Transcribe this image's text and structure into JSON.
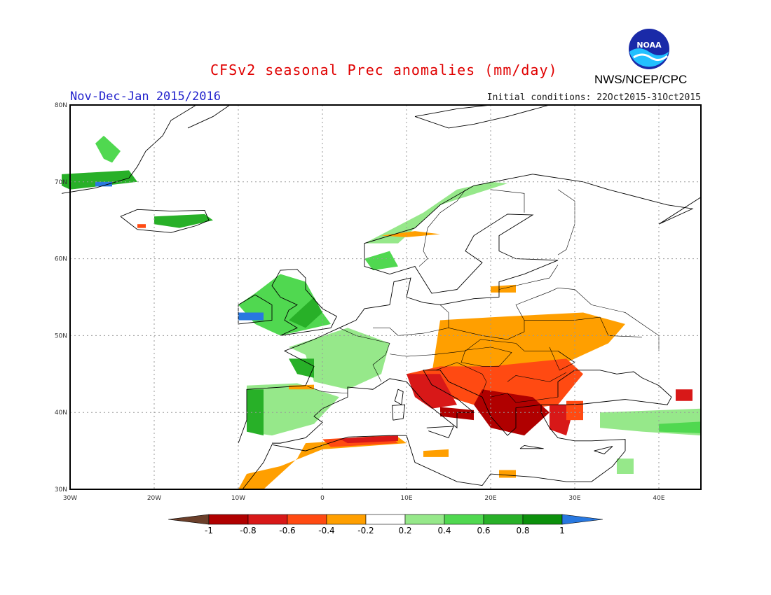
{
  "header": {
    "title": "CFSv2 seasonal Prec anomalies (mm/day)",
    "period": "Nov-Dec-Jan 2015/2016",
    "initial_conditions": "Initial conditions: 22Oct2015-31Oct2015",
    "agency": "NWS/NCEP/CPC",
    "logo_text": "NOAA"
  },
  "map": {
    "lon_labels": [
      "30W",
      "20W",
      "10W",
      "0",
      "10E",
      "20E",
      "30E",
      "40E"
    ],
    "lat_labels": [
      "80N",
      "70N",
      "60N",
      "50N",
      "40N",
      "30N"
    ]
  },
  "legend": {
    "tick_labels": [
      "-1",
      "-0.8",
      "-0.6",
      "-0.4",
      "-0.2",
      "0.2",
      "0.4",
      "0.6",
      "0.8",
      "1"
    ],
    "colors": [
      "#6b3f2a",
      "#b00000",
      "#d81818",
      "#ff4a12",
      "#ff9f00",
      "#ffffff",
      "#96e88a",
      "#50d850",
      "#28b028",
      "#0c900c",
      "#2878e0"
    ]
  }
}
